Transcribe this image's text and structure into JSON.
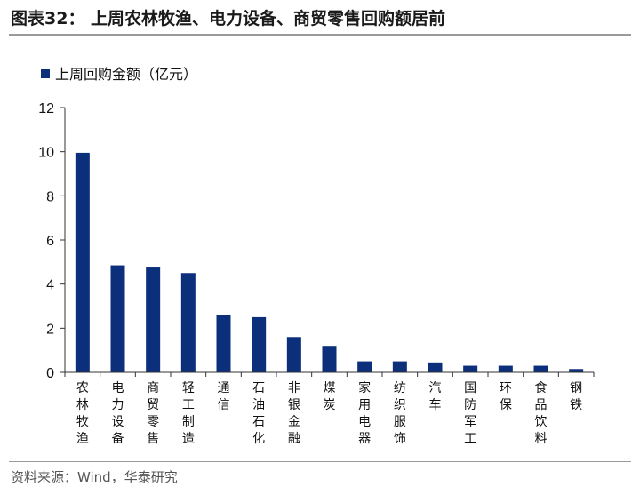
{
  "title": "图表32：  上周农林牧渔、电力设备、商贸零售回购额居前",
  "source": "资料来源：Wind，华泰研究",
  "colors": {
    "bar": "#0b2f7a",
    "axis": "#333333",
    "rule": "#9a9a9a"
  },
  "chart_data": {
    "type": "bar",
    "categories": [
      "农林牧渔",
      "电力设备",
      "商贸零售",
      "轻工制造",
      "通信",
      "石油石化",
      "非银金融",
      "煤炭",
      "家用电器",
      "纺织服饰",
      "汽车",
      "国防军工",
      "环保",
      "食品饮料",
      "钢铁"
    ],
    "series": [
      {
        "name": "上周回购金额（亿元）",
        "values": [
          9.95,
          4.85,
          4.75,
          4.5,
          2.6,
          2.5,
          1.6,
          1.2,
          0.5,
          0.5,
          0.45,
          0.3,
          0.3,
          0.3,
          0.15
        ]
      }
    ],
    "ylim": [
      0,
      12
    ],
    "yticks": [
      0,
      2,
      4,
      6,
      8,
      10,
      12
    ],
    "grid": false,
    "legend": "top-left"
  }
}
